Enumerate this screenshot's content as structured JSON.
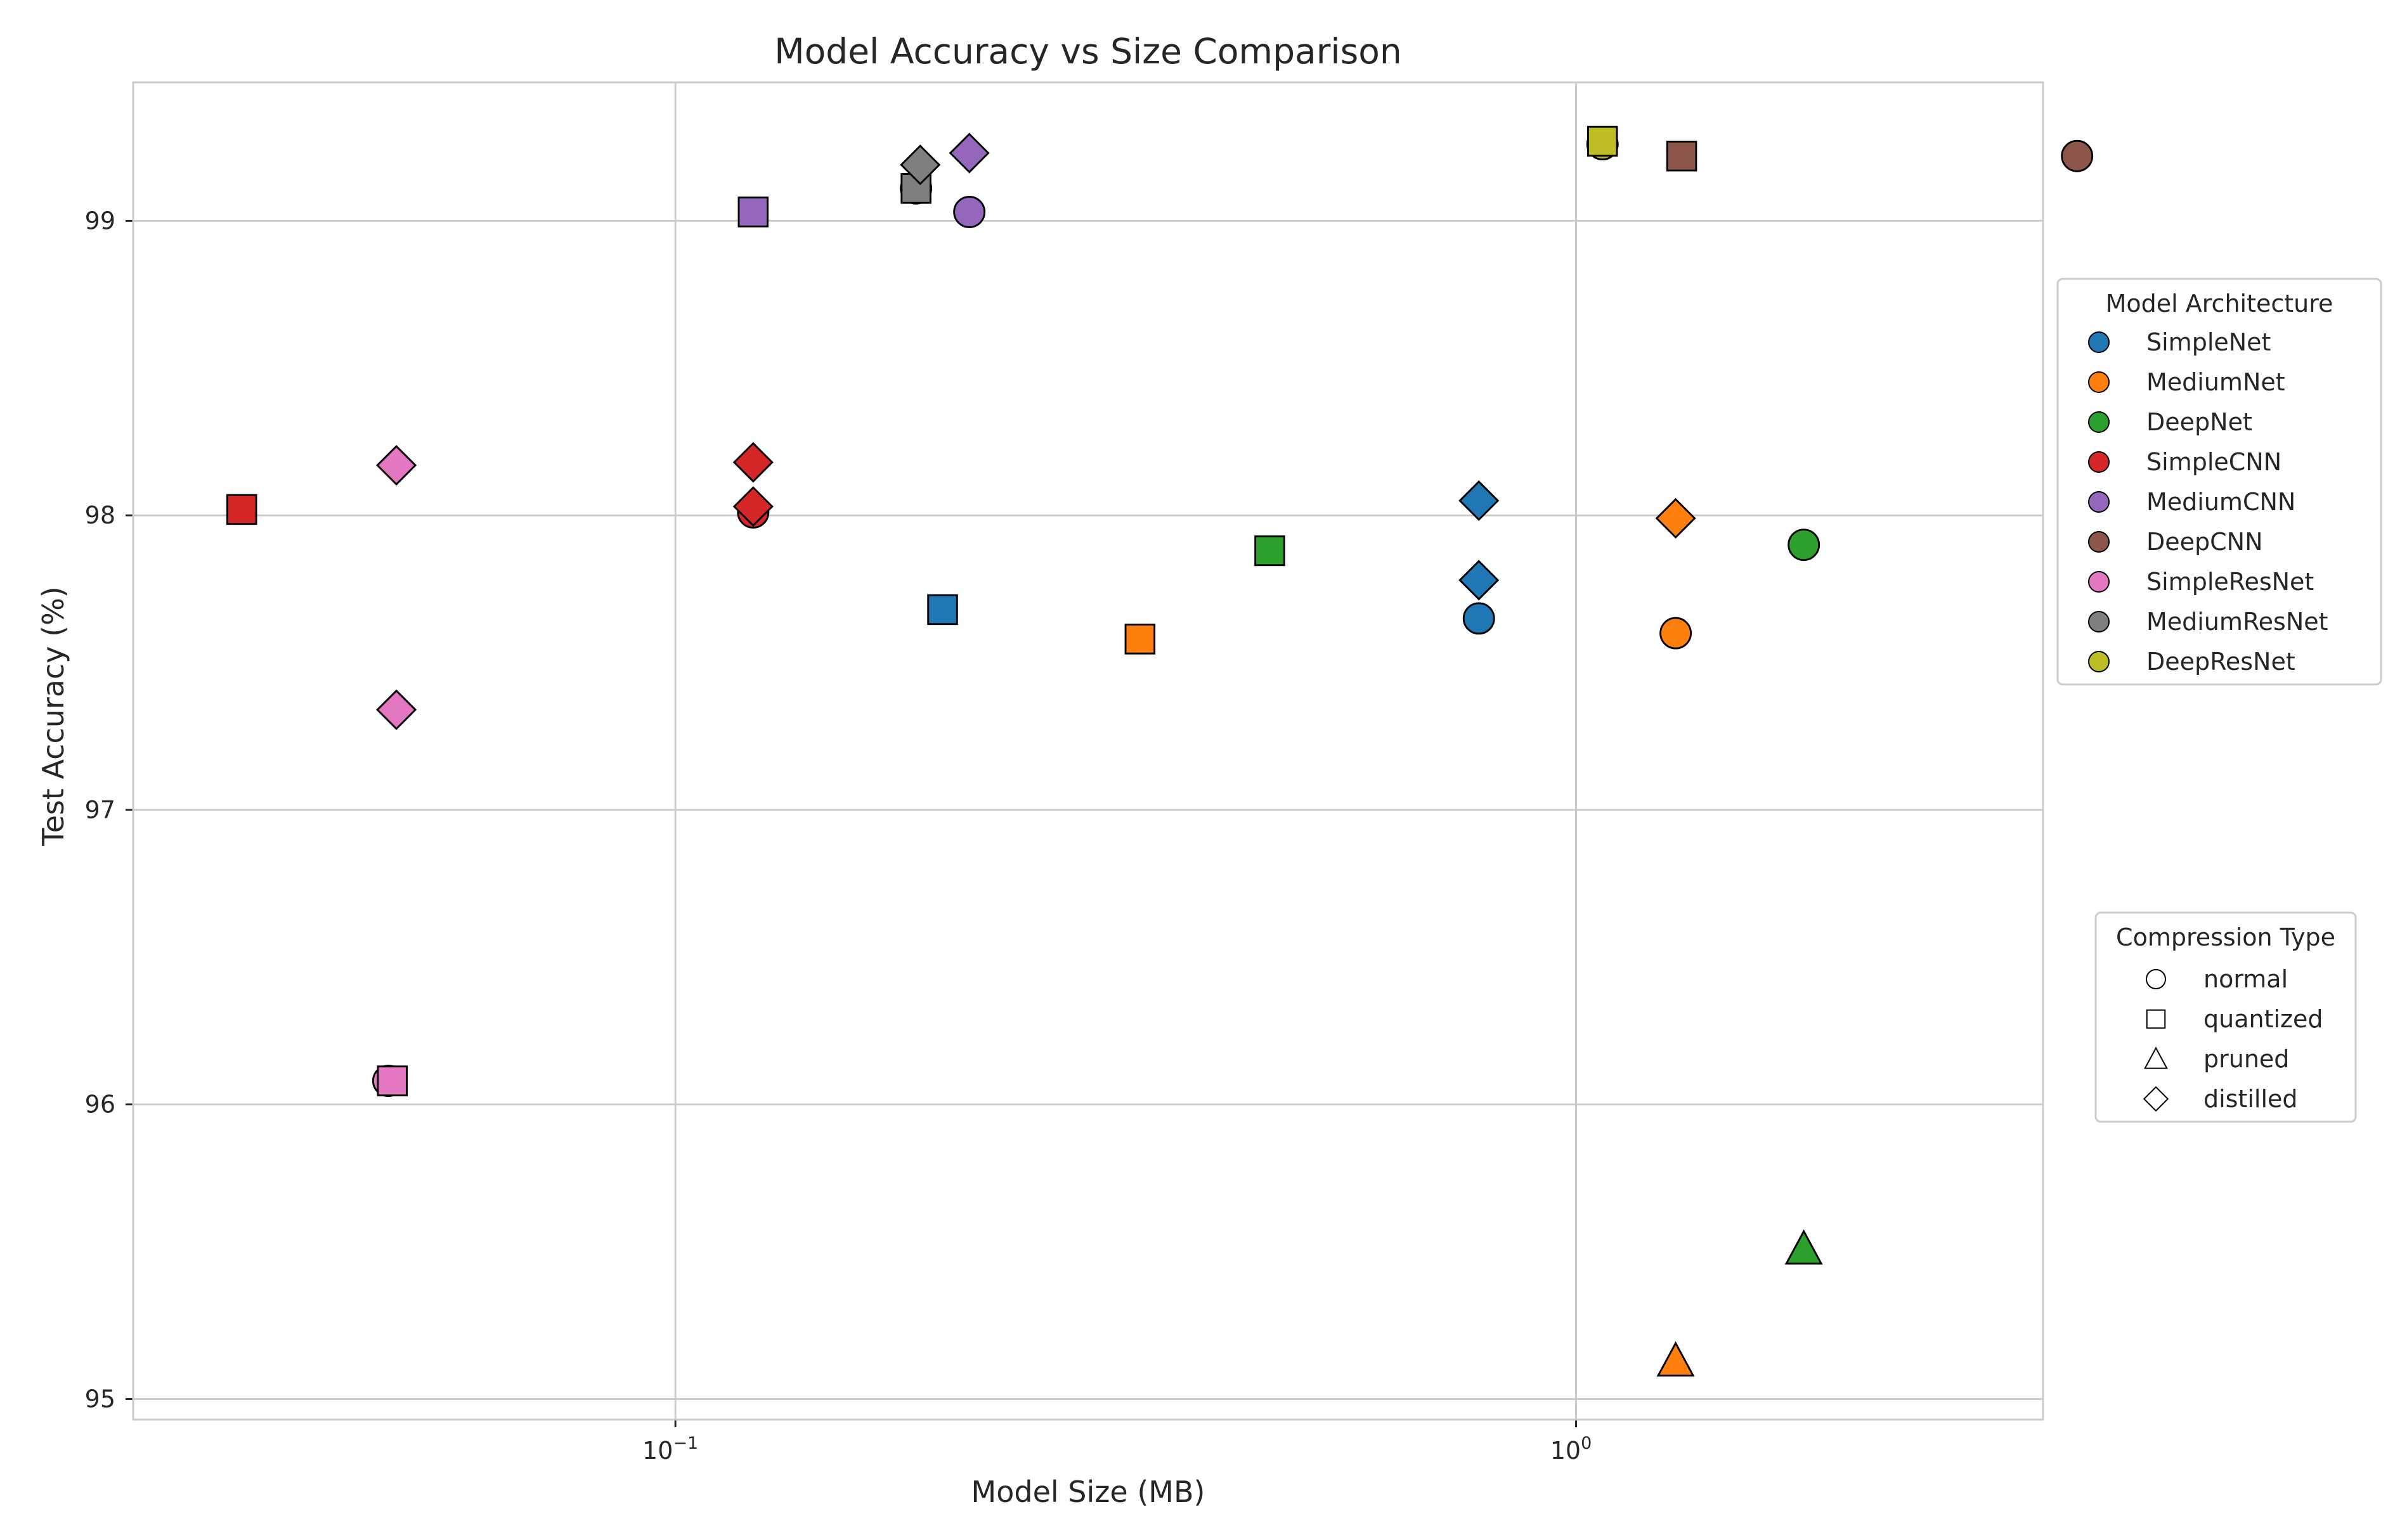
{
  "chart_data": {
    "type": "scatter",
    "title": "Model Accuracy vs Size Comparison",
    "xlabel": "Model Size (MB)",
    "ylabel": "Test Accuracy (%)",
    "xscale": "log",
    "xlim": [
      0.025,
      3.3
    ],
    "ylim": [
      94.93,
      99.47
    ],
    "xticks": [
      {
        "value": 0.1,
        "base": "10",
        "exp": "−1"
      },
      {
        "value": 1,
        "base": "10",
        "exp": "0"
      }
    ],
    "yticks": [
      95,
      96,
      97,
      98,
      99
    ],
    "grid": true,
    "architecture_legend": {
      "title": "Model Architecture",
      "placement": "right, upper",
      "items": [
        {
          "name": "SimpleNet",
          "color": "#1f77b4"
        },
        {
          "name": "MediumNet",
          "color": "#ff7f0e"
        },
        {
          "name": "DeepNet",
          "color": "#2ca02c"
        },
        {
          "name": "SimpleCNN",
          "color": "#d62728"
        },
        {
          "name": "MediumCNN",
          "color": "#9467bd"
        },
        {
          "name": "DeepCNN",
          "color": "#8c564b"
        },
        {
          "name": "SimpleResNet",
          "color": "#e377c2"
        },
        {
          "name": "MediumResNet",
          "color": "#7f7f7f"
        },
        {
          "name": "DeepResNet",
          "color": "#bcbd22"
        }
      ]
    },
    "compression_legend": {
      "title": "Compression Type",
      "placement": "right, lower",
      "items": [
        {
          "name": "normal",
          "marker": "circle"
        },
        {
          "name": "quantized",
          "marker": "square"
        },
        {
          "name": "pruned",
          "marker": "triangle"
        },
        {
          "name": "distilled",
          "marker": "diamond"
        }
      ]
    },
    "points": [
      {
        "model": "SimpleNet",
        "type": "normal",
        "x": 0.78,
        "y": 97.65
      },
      {
        "model": "SimpleNet",
        "type": "quantized",
        "x": 0.198,
        "y": 97.68
      },
      {
        "model": "SimpleNet",
        "type": "distilled",
        "x": 0.78,
        "y": 98.05
      },
      {
        "model": "SimpleNet",
        "type": "distilled",
        "x": 0.78,
        "y": 97.78
      },
      {
        "model": "MediumNet",
        "type": "normal",
        "x": 1.29,
        "y": 97.6
      },
      {
        "model": "MediumNet",
        "type": "quantized",
        "x": 0.328,
        "y": 97.58
      },
      {
        "model": "MediumNet",
        "type": "pruned",
        "x": 1.29,
        "y": 95.13
      },
      {
        "model": "MediumNet",
        "type": "distilled",
        "x": 1.29,
        "y": 97.99
      },
      {
        "model": "DeepNet",
        "type": "normal",
        "x": 1.79,
        "y": 97.9
      },
      {
        "model": "DeepNet",
        "type": "quantized",
        "x": 0.457,
        "y": 97.88
      },
      {
        "model": "DeepNet",
        "type": "pruned",
        "x": 1.79,
        "y": 95.51
      },
      {
        "model": "SimpleCNN",
        "type": "normal",
        "x": 0.122,
        "y": 98.01
      },
      {
        "model": "SimpleCNN",
        "type": "quantized",
        "x": 0.033,
        "y": 98.02
      },
      {
        "model": "SimpleCNN",
        "type": "distilled",
        "x": 0.122,
        "y": 98.18
      },
      {
        "model": "SimpleCNN",
        "type": "distilled",
        "x": 0.122,
        "y": 98.03
      },
      {
        "model": "MediumCNN",
        "type": "normal",
        "x": 0.212,
        "y": 99.03
      },
      {
        "model": "MediumCNN",
        "type": "quantized",
        "x": 0.122,
        "y": 99.03
      },
      {
        "model": "MediumCNN",
        "type": "distilled",
        "x": 0.212,
        "y": 99.23
      },
      {
        "model": "DeepCNN",
        "type": "normal",
        "x": 3.6,
        "y": 99.22
      },
      {
        "model": "DeepCNN",
        "type": "quantized",
        "x": 1.31,
        "y": 99.22
      },
      {
        "model": "SimpleResNet",
        "type": "normal",
        "x": 0.048,
        "y": 96.08
      },
      {
        "model": "SimpleResNet",
        "type": "quantized",
        "x": 0.0485,
        "y": 96.08
      },
      {
        "model": "SimpleResNet",
        "type": "distilled",
        "x": 0.049,
        "y": 98.17
      },
      {
        "model": "SimpleResNet",
        "type": "distilled",
        "x": 0.049,
        "y": 97.34
      },
      {
        "model": "MediumResNet",
        "type": "normal",
        "x": 0.185,
        "y": 99.11
      },
      {
        "model": "MediumResNet",
        "type": "quantized",
        "x": 0.185,
        "y": 99.11
      },
      {
        "model": "MediumResNet",
        "type": "distilled",
        "x": 0.187,
        "y": 99.19
      },
      {
        "model": "DeepResNet",
        "type": "normal",
        "x": 1.07,
        "y": 99.26
      },
      {
        "model": "DeepResNet",
        "type": "quantized",
        "x": 1.07,
        "y": 99.27
      }
    ]
  }
}
